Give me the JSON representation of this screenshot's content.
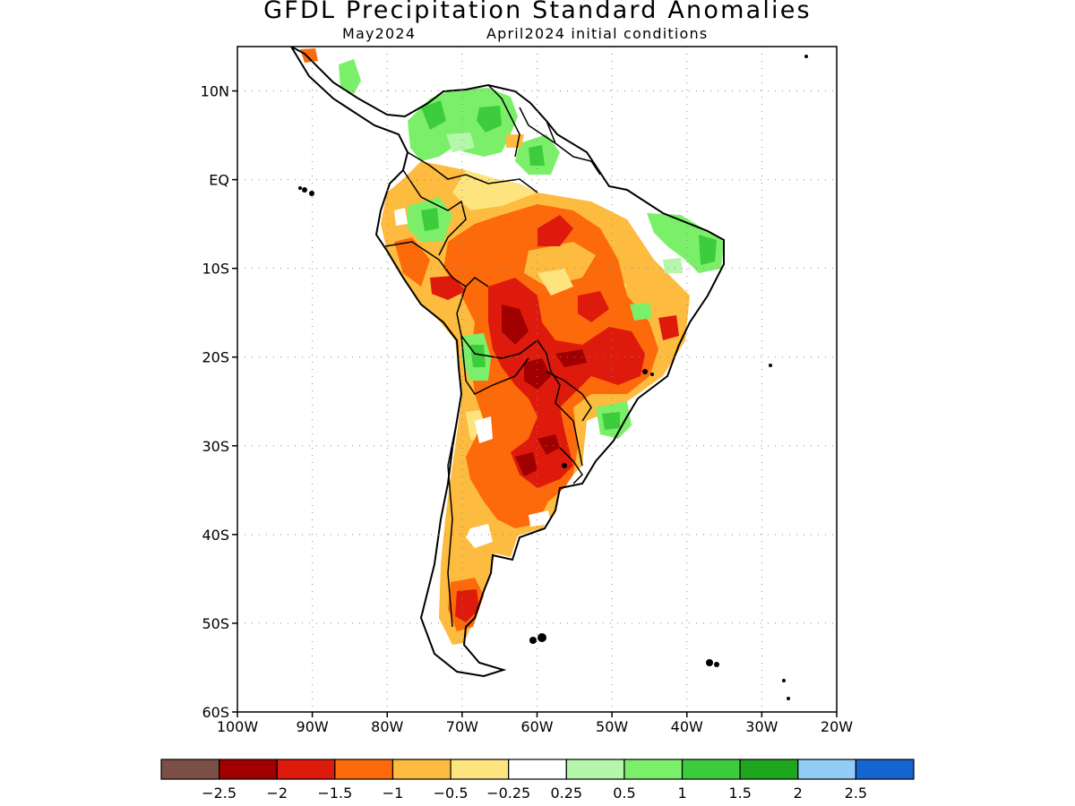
{
  "title": "GFDL Precipitation Standard Anomalies",
  "subtitle_left": "May2024",
  "subtitle_right": "April2024 initial conditions",
  "map": {
    "lat_range": [
      -60,
      15
    ],
    "lon_range": [
      -100,
      -20
    ],
    "lat_ticks": [
      {
        "lat": 10,
        "label": "10N"
      },
      {
        "lat": 0,
        "label": "EQ"
      },
      {
        "lat": -10,
        "label": "10S"
      },
      {
        "lat": -20,
        "label": "20S"
      },
      {
        "lat": -30,
        "label": "30S"
      },
      {
        "lat": -40,
        "label": "40S"
      },
      {
        "lat": -50,
        "label": "50S"
      },
      {
        "lat": -60,
        "label": "60S"
      }
    ],
    "lon_ticks": [
      {
        "lon": -100,
        "label": "100W"
      },
      {
        "lon": -90,
        "label": "90W"
      },
      {
        "lon": -80,
        "label": "80W"
      },
      {
        "lon": -70,
        "label": "70W"
      },
      {
        "lon": -60,
        "label": "60W"
      },
      {
        "lon": -50,
        "label": "50W"
      },
      {
        "lon": -40,
        "label": "40W"
      },
      {
        "lon": -30,
        "label": "30W"
      },
      {
        "lon": -20,
        "label": "20W"
      }
    ],
    "grid": "dotted"
  },
  "legend": {
    "colors": [
      "#7a4f46",
      "#a00000",
      "#dd1a0c",
      "#fd6a0b",
      "#fdbb3f",
      "#fde47e",
      "#ffffff",
      "#b4f7aa",
      "#7cef6a",
      "#3ccc3c",
      "#1fa61f",
      "#93cdf7",
      "#1565d0"
    ],
    "labels": [
      "−2.5",
      "−2",
      "−1.5",
      "−1",
      "−0.5",
      "−0.25",
      "0.25",
      "0.5",
      "1",
      "1.5",
      "2",
      "2.5"
    ]
  }
}
